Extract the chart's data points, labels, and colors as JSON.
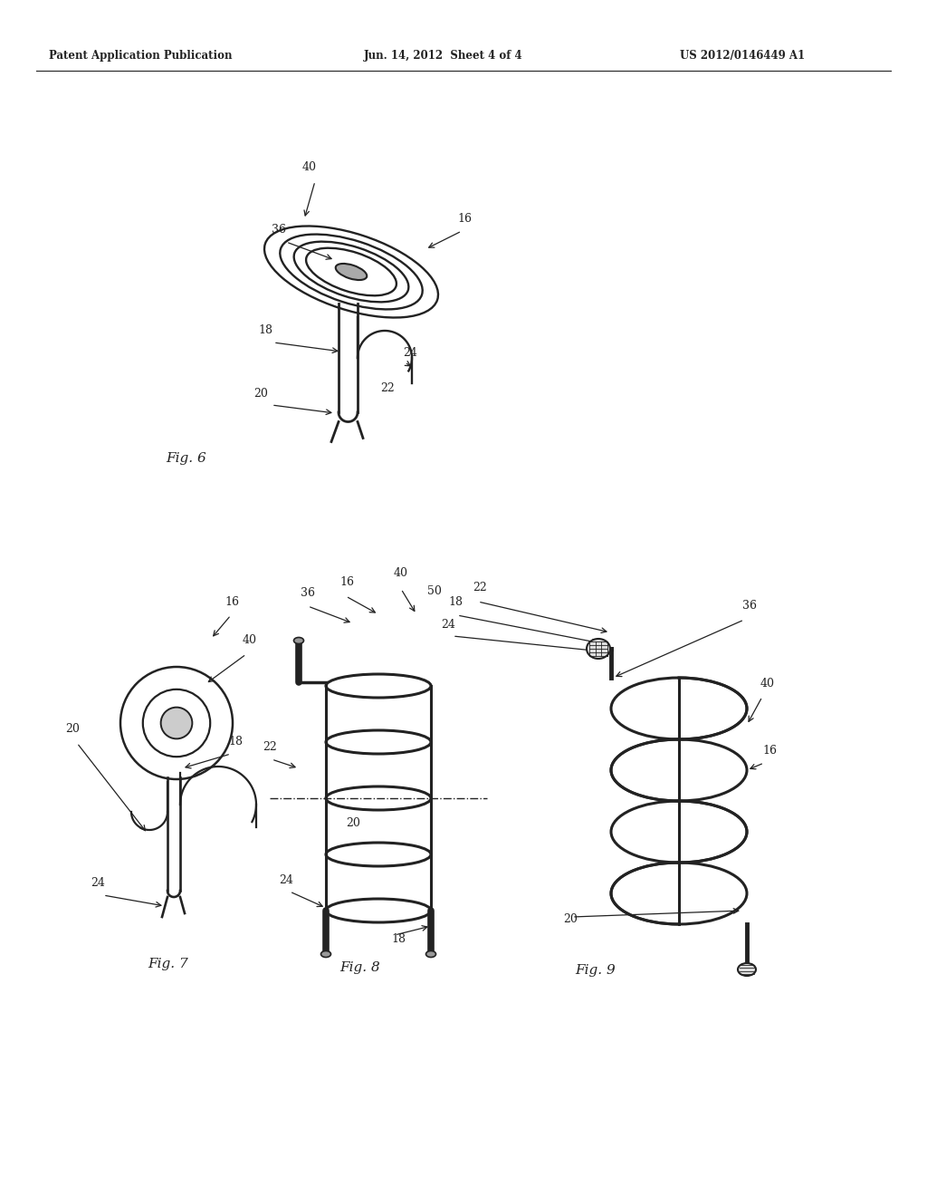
{
  "background_color": "#ffffff",
  "line_color": "#222222",
  "header_left": "Patent Application Publication",
  "header_mid": "Jun. 14, 2012  Sheet 4 of 4",
  "header_right": "US 2012/0146449 A1",
  "fig6_label": "Fig. 6",
  "fig7_label": "Fig. 7",
  "fig8_label": "Fig. 8",
  "fig9_label": "Fig. 9"
}
